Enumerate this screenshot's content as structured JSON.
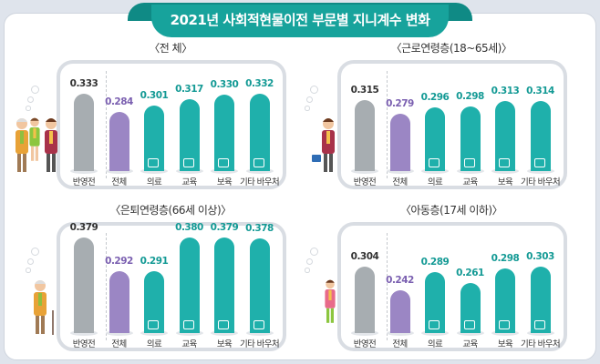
{
  "title": "2021년 사회적현물이전 부문별 지니계수 변화",
  "colors": {
    "before": "#a7adb1",
    "total": "#9b86c4",
    "sector": "#1fb0ab",
    "banner": "#17a39c"
  },
  "chart_data": [
    {
      "type": "bar",
      "title": "〈전 체〉",
      "categories": [
        "반영전",
        "전체",
        "의료",
        "교육",
        "보육",
        "기타 바우처"
      ],
      "values": [
        0.333,
        0.284,
        0.301,
        0.317,
        0.33,
        0.332
      ],
      "icons": [
        null,
        null,
        "medical-kit-icon",
        "graduation-cap-icon",
        "baby-icon",
        "voucher-icon"
      ]
    },
    {
      "type": "bar",
      "title": "〈근로연령층(18~65세)〉",
      "categories": [
        "반영전",
        "전체",
        "의료",
        "교육",
        "보육",
        "기타 바우처"
      ],
      "values": [
        0.315,
        0.279,
        0.296,
        0.298,
        0.313,
        0.314
      ],
      "icons": [
        null,
        null,
        "medical-kit-icon",
        "graduation-cap-icon",
        "baby-icon",
        "voucher-icon"
      ]
    },
    {
      "type": "bar",
      "title": "〈은퇴연령층(66세 이상)〉",
      "categories": [
        "반영전",
        "전체",
        "의료",
        "교육",
        "보육",
        "기타 바우처"
      ],
      "values": [
        0.379,
        0.292,
        0.291,
        0.38,
        0.379,
        0.378
      ],
      "icons": [
        null,
        null,
        "medical-kit-icon",
        "graduation-cap-icon",
        "baby-icon",
        "voucher-icon"
      ]
    },
    {
      "type": "bar",
      "title": "〈아동층(17세 이하)〉",
      "categories": [
        "반영전",
        "전체",
        "의료",
        "교육",
        "보육",
        "기타 바우처"
      ],
      "values": [
        0.304,
        0.242,
        0.289,
        0.261,
        0.298,
        0.303
      ],
      "icons": [
        null,
        null,
        "medical-kit-icon",
        "graduation-cap-icon",
        "baby-icon",
        "voucher-icon"
      ]
    }
  ]
}
